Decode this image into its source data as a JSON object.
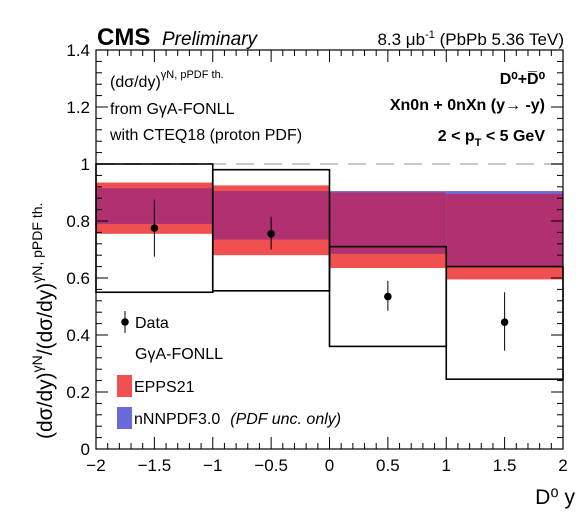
{
  "header": {
    "experiment": "CMS",
    "status": "Preliminary",
    "lumi_value": "8.3 μb",
    "lumi_exp": "-1",
    "lumi_tail": " (PbPb 5.36 TeV)"
  },
  "annotations": {
    "formula_base": "(dσ/dy)",
    "formula_sup": "γN, pPDF th.",
    "line2": "from GγA-FONLL",
    "line3": "with CTEQ18 (proton PDF)",
    "particle": "D⁰+D̅⁰",
    "selection": "Xn0n + 0nXn (y→ -y)",
    "pt_range": "2 < p",
    "pt_sub": "T",
    "pt_tail": " < 5 GeV"
  },
  "legend": {
    "data_label": "Data",
    "model_title": "GγA-FONLL",
    "epps_label": "EPPS21",
    "nnnpdf_label": "nNNPDF3.0",
    "nnnpdf_note": "(PDF unc. only)"
  },
  "colors": {
    "epps_fill": "#f05050",
    "nnnpdf_fill": "#6a6ad8",
    "overlap_fill": "#b03070",
    "dashed_line": "#c8c8c8"
  },
  "chart_data": {
    "type": "scatter",
    "xlabel": "D⁰ y",
    "ylabel": "(dσ/dy)ˠᴺ/(dσ/dy)ˠᴺ, pPDF th.",
    "ylabel_parts": {
      "base1": "(dσ/dy)",
      "sup1": "γN",
      "base2": "/(dσ/dy)",
      "sup2": "γN, pPDF th."
    },
    "xlim": [
      -2,
      2
    ],
    "ylim": [
      0,
      1.4
    ],
    "x_ticks": [
      -2,
      -1.5,
      -1,
      -0.5,
      0,
      0.5,
      1,
      1.5,
      2
    ],
    "x_tick_labels": [
      "−2",
      "−1.5",
      "−1",
      "−0.5",
      "0",
      "0.5",
      "1",
      "1.5",
      "2"
    ],
    "y_ticks": [
      0,
      0.2,
      0.4,
      0.6,
      0.8,
      1,
      1.2,
      1.4
    ],
    "y_tick_labels": [
      "0",
      "0.2",
      "0.4",
      "0.6",
      "0.8",
      "1",
      "1.2",
      "1.4"
    ],
    "reference_line": 1.0,
    "data_points": [
      {
        "x": -1.5,
        "y": 0.775,
        "stat_low": 0.675,
        "stat_high": 0.875
      },
      {
        "x": -0.5,
        "y": 0.755,
        "stat_low": 0.7,
        "stat_high": 0.815
      },
      {
        "x": 0.5,
        "y": 0.535,
        "stat_low": 0.485,
        "stat_high": 0.59
      },
      {
        "x": 1.5,
        "y": 0.445,
        "stat_low": 0.345,
        "stat_high": 0.55
      }
    ],
    "syst_boxes": [
      {
        "x_low": -2,
        "x_high": -1,
        "y_low": 0.55,
        "y_high": 1.0
      },
      {
        "x_low": -1,
        "x_high": 0,
        "y_low": 0.555,
        "y_high": 0.98
      },
      {
        "x_low": 0,
        "x_high": 1,
        "y_low": 0.36,
        "y_high": 0.71
      },
      {
        "x_low": 1,
        "x_high": 2,
        "y_low": 0.245,
        "y_high": 0.64
      }
    ],
    "series": [
      {
        "name": "EPPS21",
        "bins": [
          {
            "x_low": -2,
            "x_high": -1,
            "low": 0.755,
            "high": 0.935
          },
          {
            "x_low": -1,
            "x_high": 0,
            "low": 0.68,
            "high": 0.925
          },
          {
            "x_low": 0,
            "x_high": 1,
            "low": 0.635,
            "high": 0.9
          },
          {
            "x_low": 1,
            "x_high": 2,
            "low": 0.595,
            "high": 0.895
          }
        ]
      },
      {
        "name": "nNNPDF3.0",
        "bins": [
          {
            "x_low": -2,
            "x_high": -1,
            "low": 0.79,
            "high": 0.915
          },
          {
            "x_low": -1,
            "x_high": 0,
            "low": 0.735,
            "high": 0.905
          },
          {
            "x_low": 0,
            "x_high": 1,
            "low": 0.685,
            "high": 0.905
          },
          {
            "x_low": 1,
            "x_high": 2,
            "low": 0.64,
            "high": 0.905
          }
        ]
      }
    ]
  }
}
